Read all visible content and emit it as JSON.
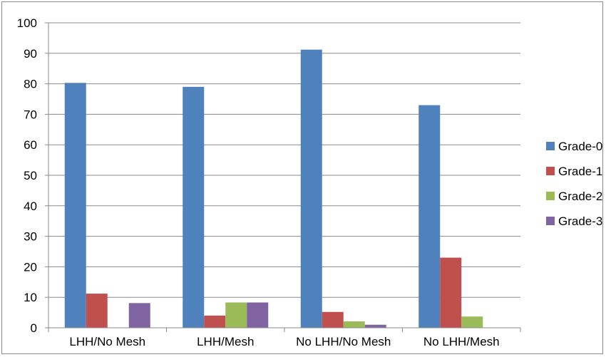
{
  "chart_data": {
    "type": "bar",
    "categories": [
      "LHH/No Mesh",
      "LHH/Mesh",
      "No LHH/No Mesh",
      "No LHH/Mesh"
    ],
    "series": [
      {
        "name": "Grade-0",
        "color": "#4f81bd",
        "values": [
          80.3,
          79.0,
          91.2,
          73.0
        ]
      },
      {
        "name": "Grade-1",
        "color": "#c0504d",
        "values": [
          11.2,
          4.0,
          5.2,
          23.0
        ]
      },
      {
        "name": "Grade-2",
        "color": "#9bbb59",
        "values": [
          0,
          8.3,
          2.1,
          3.7
        ]
      },
      {
        "name": "Grade-3",
        "color": "#8064a2",
        "values": [
          8.1,
          8.3,
          1.0,
          0
        ]
      }
    ],
    "ylim": [
      0,
      100
    ],
    "yticks": [
      "0",
      "10",
      "20",
      "30",
      "40",
      "50",
      "60",
      "70",
      "80",
      "90",
      "100"
    ],
    "grid": true,
    "legend": "right"
  }
}
